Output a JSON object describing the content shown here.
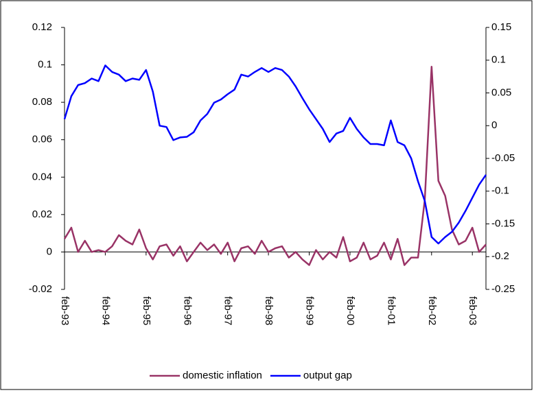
{
  "chart_data": {
    "type": "line",
    "categories": [
      "feb-93",
      null,
      null,
      null,
      null,
      null,
      "feb-94",
      null,
      null,
      null,
      null,
      null,
      "feb-95",
      null,
      null,
      null,
      null,
      null,
      "feb-96",
      null,
      null,
      null,
      null,
      null,
      "feb-97",
      null,
      null,
      null,
      null,
      null,
      "feb-98",
      null,
      null,
      null,
      null,
      null,
      "feb-99",
      null,
      null,
      null,
      null,
      null,
      "feb-00",
      null,
      null,
      null,
      null,
      null,
      "feb-01",
      null,
      null,
      null,
      null,
      null,
      "feb-02",
      null,
      null,
      null,
      null,
      null,
      "feb-03",
      null,
      null
    ],
    "series": [
      {
        "name": "domestic inflation",
        "color": "#993366",
        "axis": "y",
        "values": [
          0.007,
          0.013,
          0.0,
          0.006,
          0.0,
          0.001,
          0.0,
          0.003,
          0.009,
          0.006,
          0.004,
          0.012,
          0.002,
          -0.004,
          0.003,
          0.004,
          -0.002,
          0.003,
          -0.005,
          0.0,
          0.005,
          0.001,
          0.004,
          -0.001,
          0.005,
          -0.005,
          0.002,
          0.003,
          -0.001,
          0.006,
          0.0,
          0.002,
          0.003,
          -0.003,
          0.0,
          -0.004,
          -0.007,
          0.001,
          -0.004,
          0.0,
          -0.003,
          0.008,
          -0.005,
          -0.003,
          0.005,
          -0.004,
          -0.002,
          0.005,
          -0.004,
          0.007,
          -0.007,
          -0.003,
          -0.003,
          0.028,
          0.099,
          0.038,
          0.03,
          0.012,
          0.004,
          0.006,
          0.013,
          0.0,
          0.004
        ]
      },
      {
        "name": "output gap",
        "color": "#0000ff",
        "axis": "y2",
        "values": [
          0.01,
          0.045,
          0.062,
          0.065,
          0.072,
          0.068,
          0.092,
          0.082,
          0.078,
          0.068,
          0.072,
          0.07,
          0.085,
          0.052,
          0.0,
          -0.002,
          -0.022,
          -0.018,
          -0.017,
          -0.01,
          0.008,
          0.018,
          0.035,
          0.04,
          0.048,
          0.055,
          0.078,
          0.075,
          0.082,
          0.088,
          0.082,
          0.088,
          0.085,
          0.075,
          0.06,
          0.042,
          0.025,
          0.01,
          -0.005,
          -0.025,
          -0.012,
          -0.008,
          0.012,
          -0.005,
          -0.018,
          -0.028,
          -0.028,
          -0.03,
          0.008,
          -0.025,
          -0.03,
          -0.05,
          -0.085,
          -0.115,
          -0.17,
          -0.18,
          -0.17,
          -0.162,
          -0.148,
          -0.13,
          -0.11,
          -0.09,
          -0.075
        ]
      }
    ],
    "ylim": [
      -0.02,
      0.12
    ],
    "yticks": [
      -0.02,
      0,
      0.02,
      0.04,
      0.06,
      0.08,
      0.1,
      0.12
    ],
    "y2lim": [
      -0.25,
      0.15
    ],
    "y2ticks": [
      -0.25,
      -0.2,
      -0.15,
      -0.1,
      -0.05,
      0,
      0.05,
      0.1,
      0.15
    ],
    "legend": "bottom"
  }
}
